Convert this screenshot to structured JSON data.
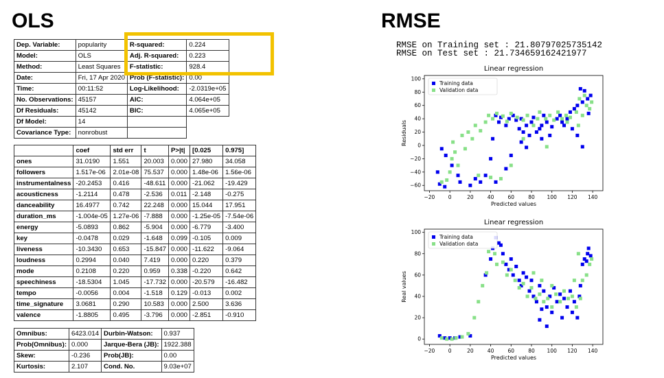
{
  "headings": {
    "ols": "OLS",
    "rmse": "RMSE"
  },
  "highlight_color": "#f2c200",
  "ols_summary": {
    "rows": [
      [
        "Dep. Variable:",
        "popularity",
        "R-squared:",
        "0.224"
      ],
      [
        "Model:",
        "OLS",
        "Adj. R-squared:",
        "0.223"
      ],
      [
        "Method:",
        "Least Squares",
        "F-statistic:",
        "928.4"
      ],
      [
        "Date:",
        "Fri, 17 Apr 2020",
        "Prob (F-statistic):",
        "0.00"
      ],
      [
        "Time:",
        "00:11:52",
        "Log-Likelihood:",
        "-2.0319e+05"
      ],
      [
        "No. Observations:",
        "45157",
        "AIC:",
        "4.064e+05"
      ],
      [
        "Df Residuals:",
        "45142",
        "BIC:",
        "4.065e+05"
      ],
      [
        "Df Model:",
        "14",
        "",
        ""
      ],
      [
        "Covariance Type:",
        "nonrobust",
        "",
        ""
      ]
    ]
  },
  "coef_table": {
    "headers": [
      "",
      "coef",
      "std err",
      "t",
      "P>|t|",
      "[0.025",
      "0.975]"
    ],
    "rows": [
      [
        "ones",
        "31.0190",
        "1.551",
        "20.003",
        "0.000",
        "27.980",
        "34.058"
      ],
      [
        "followers",
        "1.517e-06",
        "2.01e-08",
        "75.537",
        "0.000",
        "1.48e-06",
        "1.56e-06"
      ],
      [
        "instrumentalness",
        "-20.2453",
        "0.416",
        "-48.611",
        "0.000",
        "-21.062",
        "-19.429"
      ],
      [
        "acousticness",
        "-1.2114",
        "0.478",
        "-2.536",
        "0.011",
        "-2.148",
        "-0.275"
      ],
      [
        "danceability",
        "16.4977",
        "0.742",
        "22.248",
        "0.000",
        "15.044",
        "17.951"
      ],
      [
        "duration_ms",
        "-1.004e-05",
        "1.27e-06",
        "-7.888",
        "0.000",
        "-1.25e-05",
        "-7.54e-06"
      ],
      [
        "energy",
        "-5.0893",
        "0.862",
        "-5.904",
        "0.000",
        "-6.779",
        "-3.400"
      ],
      [
        "key",
        "-0.0478",
        "0.029",
        "-1.648",
        "0.099",
        "-0.105",
        "0.009"
      ],
      [
        "liveness",
        "-10.3430",
        "0.653",
        "-15.847",
        "0.000",
        "-11.622",
        "-9.064"
      ],
      [
        "loudness",
        "0.2994",
        "0.040",
        "7.419",
        "0.000",
        "0.220",
        "0.379"
      ],
      [
        "mode",
        "0.2108",
        "0.220",
        "0.959",
        "0.338",
        "-0.220",
        "0.642"
      ],
      [
        "speechiness",
        "-18.5304",
        "1.045",
        "-17.732",
        "0.000",
        "-20.579",
        "-16.482"
      ],
      [
        "tempo",
        "-0.0056",
        "0.004",
        "-1.518",
        "0.129",
        "-0.013",
        "0.002"
      ],
      [
        "time_signature",
        "3.0681",
        "0.290",
        "10.583",
        "0.000",
        "2.500",
        "3.636"
      ],
      [
        "valence",
        "-1.8805",
        "0.495",
        "-3.796",
        "0.000",
        "-2.851",
        "-0.910"
      ]
    ]
  },
  "diagnostics": {
    "rows": [
      [
        "Omnibus:",
        "6423.014",
        "Durbin-Watson:",
        "0.937"
      ],
      [
        "Prob(Omnibus):",
        "0.000",
        "Jarque-Bera (JB):",
        "1922.388"
      ],
      [
        "Skew:",
        "-0.236",
        "Prob(JB):",
        "0.00"
      ],
      [
        "Kurtosis:",
        "2.107",
        "Cond. No.",
        "9.03e+07"
      ]
    ]
  },
  "rmse": {
    "train": "RMSE on Training set : 21.80797025735142",
    "test": "RMSE on Test set : 21.734659162421977"
  },
  "chart_data": [
    {
      "type": "scatter",
      "title": "Linear regression",
      "xlabel": "Predicted values",
      "ylabel": "Residuals",
      "xlim": [
        -25,
        150
      ],
      "ylim": [
        -68,
        105
      ],
      "xticks": [
        -20,
        0,
        20,
        40,
        60,
        80,
        100,
        120,
        140
      ],
      "yticks": [
        -60,
        -40,
        -20,
        0,
        20,
        40,
        60,
        80,
        100
      ],
      "legend_position": "top-left",
      "series": [
        {
          "name": "Training data",
          "color": "#0000ee",
          "points": [
            [
              -10,
              -58
            ],
            [
              -5,
              -62
            ],
            [
              10,
              -55
            ],
            [
              25,
              -50
            ],
            [
              35,
              -45
            ],
            [
              40,
              -20
            ],
            [
              42,
              10
            ],
            [
              45,
              45
            ],
            [
              48,
              35
            ],
            [
              50,
              42
            ],
            [
              55,
              30
            ],
            [
              58,
              40
            ],
            [
              62,
              45
            ],
            [
              65,
              38
            ],
            [
              68,
              25
            ],
            [
              70,
              40
            ],
            [
              72,
              20
            ],
            [
              75,
              30
            ],
            [
              78,
              15
            ],
            [
              80,
              35
            ],
            [
              82,
              42
            ],
            [
              85,
              20
            ],
            [
              88,
              25
            ],
            [
              90,
              30
            ],
            [
              92,
              45
            ],
            [
              95,
              35
            ],
            [
              98,
              15
            ],
            [
              100,
              28
            ],
            [
              105,
              40
            ],
            [
              108,
              45
            ],
            [
              110,
              35
            ],
            [
              112,
              30
            ],
            [
              115,
              40
            ],
            [
              118,
              50
            ],
            [
              122,
              55
            ],
            [
              125,
              60
            ],
            [
              120,
              25
            ],
            [
              128,
              85
            ],
            [
              130,
              65
            ],
            [
              132,
              82
            ],
            [
              135,
              70
            ],
            [
              138,
              75
            ],
            [
              136,
              48
            ],
            [
              130,
              -2
            ],
            [
              125,
              15
            ],
            [
              90,
              10
            ],
            [
              70,
              5
            ],
            [
              75,
              -3
            ],
            [
              60,
              -15
            ],
            [
              55,
              -35
            ],
            [
              45,
              -55
            ],
            [
              30,
              -55
            ],
            [
              20,
              -60
            ],
            [
              8,
              -45
            ],
            [
              2,
              -30
            ],
            [
              -4,
              -15
            ],
            [
              -8,
              -5
            ],
            [
              -12,
              -40
            ]
          ]
        },
        {
          "name": "Validation data",
          "color": "#88e088",
          "points": [
            [
              -8,
              -55
            ],
            [
              -3,
              -52
            ],
            [
              0,
              -40
            ],
            [
              2,
              -20
            ],
            [
              3,
              5
            ],
            [
              5,
              -10
            ],
            [
              8,
              -30
            ],
            [
              12,
              15
            ],
            [
              15,
              -5
            ],
            [
              18,
              20
            ],
            [
              22,
              10
            ],
            [
              25,
              30
            ],
            [
              30,
              22
            ],
            [
              35,
              35
            ],
            [
              38,
              45
            ],
            [
              42,
              40
            ],
            [
              46,
              48
            ],
            [
              52,
              44
            ],
            [
              56,
              36
            ],
            [
              60,
              48
            ],
            [
              66,
              42
            ],
            [
              72,
              38
            ],
            [
              76,
              45
            ],
            [
              82,
              30
            ],
            [
              86,
              40
            ],
            [
              88,
              50
            ],
            [
              94,
              40
            ],
            [
              98,
              45
            ],
            [
              102,
              38
            ],
            [
              106,
              50
            ],
            [
              110,
              40
            ],
            [
              114,
              45
            ],
            [
              118,
              42
            ],
            [
              124,
              50
            ],
            [
              126,
              30
            ],
            [
              130,
              45
            ],
            [
              134,
              60
            ],
            [
              137,
              55
            ],
            [
              139,
              65
            ],
            [
              132,
              75
            ],
            [
              127,
              70
            ],
            [
              115,
              35
            ],
            [
              95,
              -2
            ],
            [
              72,
              10
            ],
            [
              60,
              -30
            ],
            [
              50,
              -50
            ],
            [
              40,
              -48
            ],
            [
              28,
              -45
            ]
          ]
        }
      ]
    },
    {
      "type": "scatter",
      "title": "Linear regression",
      "xlabel": "Predicted values",
      "ylabel": "Real values",
      "xlim": [
        -25,
        150
      ],
      "ylim": [
        -5,
        103
      ],
      "xticks": [
        -20,
        0,
        20,
        40,
        60,
        80,
        100,
        120,
        140
      ],
      "yticks": [
        0,
        20,
        40,
        60,
        80,
        100
      ],
      "legend_position": "top-left",
      "series": [
        {
          "name": "Training data",
          "color": "#0000ee",
          "points": [
            [
              -10,
              3
            ],
            [
              -5,
              1
            ],
            [
              0,
              1
            ],
            [
              5,
              1
            ],
            [
              10,
              2
            ],
            [
              20,
              3
            ],
            [
              35,
              60
            ],
            [
              40,
              75
            ],
            [
              42,
              85
            ],
            [
              45,
              95
            ],
            [
              48,
              90
            ],
            [
              50,
              88
            ],
            [
              52,
              80
            ],
            [
              55,
              70
            ],
            [
              58,
              65
            ],
            [
              60,
              75
            ],
            [
              62,
              60
            ],
            [
              65,
              68
            ],
            [
              68,
              55
            ],
            [
              70,
              50
            ],
            [
              72,
              62
            ],
            [
              75,
              58
            ],
            [
              78,
              45
            ],
            [
              80,
              55
            ],
            [
              82,
              40
            ],
            [
              85,
              35
            ],
            [
              88,
              50
            ],
            [
              90,
              28
            ],
            [
              92,
              45
            ],
            [
              95,
              30
            ],
            [
              98,
              40
            ],
            [
              100,
              25
            ],
            [
              102,
              48
            ],
            [
              105,
              35
            ],
            [
              108,
              42
            ],
            [
              110,
              20
            ],
            [
              112,
              38
            ],
            [
              115,
              30
            ],
            [
              118,
              45
            ],
            [
              120,
              25
            ],
            [
              125,
              20
            ],
            [
              128,
              50
            ],
            [
              130,
              70
            ],
            [
              132,
              75
            ],
            [
              135,
              80
            ],
            [
              138,
              78
            ],
            [
              136,
              85
            ],
            [
              134,
              73
            ],
            [
              127,
              40
            ],
            [
              122,
              35
            ],
            [
              95,
              12
            ],
            [
              88,
              18
            ]
          ]
        },
        {
          "name": "Validation data",
          "color": "#88e088",
          "points": [
            [
              -8,
              1
            ],
            [
              -3,
              0
            ],
            [
              2,
              0
            ],
            [
              6,
              1
            ],
            [
              12,
              2
            ],
            [
              18,
              5
            ],
            [
              24,
              20
            ],
            [
              28,
              35
            ],
            [
              32,
              50
            ],
            [
              36,
              62
            ],
            [
              38,
              82
            ],
            [
              44,
              80
            ],
            [
              46,
              70
            ],
            [
              52,
              72
            ],
            [
              56,
              60
            ],
            [
              60,
              65
            ],
            [
              64,
              55
            ],
            [
              68,
              48
            ],
            [
              72,
              52
            ],
            [
              76,
              40
            ],
            [
              80,
              48
            ],
            [
              84,
              38
            ],
            [
              88,
              42
            ],
            [
              92,
              35
            ],
            [
              96,
              38
            ],
            [
              100,
              30
            ],
            [
              104,
              42
            ],
            [
              108,
              35
            ],
            [
              112,
              45
            ],
            [
              116,
              38
            ],
            [
              120,
              40
            ],
            [
              124,
              30
            ],
            [
              128,
              38
            ],
            [
              130,
              55
            ],
            [
              134,
              60
            ],
            [
              137,
              70
            ],
            [
              139,
              75
            ],
            [
              126,
              80
            ],
            [
              122,
              55
            ],
            [
              100,
              50
            ],
            [
              90,
              55
            ],
            [
              82,
              62
            ]
          ]
        }
      ]
    }
  ]
}
